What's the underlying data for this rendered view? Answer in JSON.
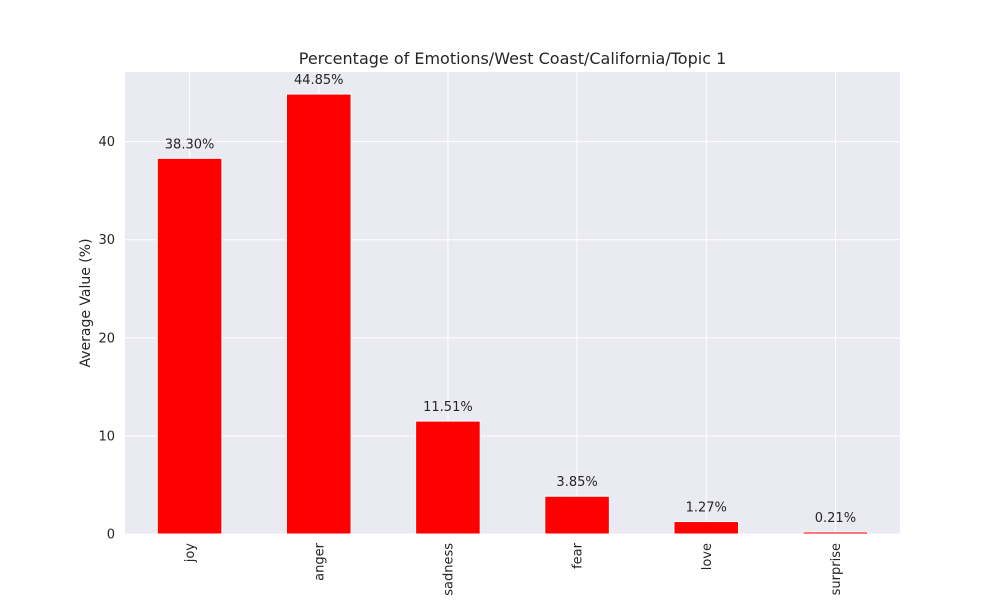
{
  "chart_data": {
    "type": "bar",
    "title": "Percentage of Emotions/West Coast/California/Topic 1",
    "xlabel": "",
    "ylabel": "Average Value (%)",
    "categories": [
      "joy",
      "anger",
      "sadness",
      "fear",
      "love",
      "surprise"
    ],
    "values": [
      38.3,
      44.85,
      11.51,
      3.85,
      1.27,
      0.21
    ],
    "data_labels": [
      "38.30%",
      "44.85%",
      "11.51%",
      "3.85%",
      "1.27%",
      "0.21%"
    ],
    "ylim": [
      0,
      47.1
    ],
    "yticks": [
      0,
      10,
      20,
      30,
      40
    ],
    "ytick_labels": [
      "0",
      "10",
      "20",
      "30",
      "40"
    ],
    "x_tick_rotation": 90,
    "grid": true,
    "legend": "none",
    "bar_color": "#ff0000",
    "background_color": "#eaeaf2"
  }
}
